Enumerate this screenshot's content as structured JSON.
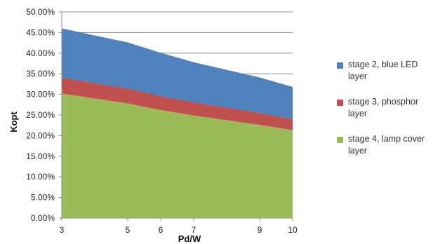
{
  "chart_data": {
    "type": "area",
    "stacked": true,
    "x": [
      3,
      5,
      6,
      7,
      9,
      10
    ],
    "xlabel": "Pd/W",
    "ylabel": "Kopt",
    "ylim": [
      0,
      50
    ],
    "yticks": [
      "0.00%",
      "5.00%",
      "10.00%",
      "15.00%",
      "20.00%",
      "25.00%",
      "30.00%",
      "35.00%",
      "40.00%",
      "45.00%",
      "50.00%"
    ],
    "xticks": [
      "3",
      "5",
      "6",
      "7",
      "9",
      "10"
    ],
    "grid": "horizontal",
    "legend": "right",
    "series": [
      {
        "name": "stage 4, lamp cover layer",
        "color": "#9bbb59",
        "values": [
          30.2,
          27.8,
          26.2,
          24.9,
          22.6,
          21.3
        ]
      },
      {
        "name": "stage 3, phosphor layer",
        "color": "#c0504d",
        "values": [
          3.9,
          3.6,
          3.4,
          3.2,
          2.9,
          2.7
        ]
      },
      {
        "name": "stage 2, blue LED layer",
        "color": "#4f81bd",
        "values": [
          11.9,
          11.2,
          10.5,
          9.7,
          8.6,
          7.8
        ]
      }
    ],
    "legend_order": [
      2,
      1,
      0
    ]
  }
}
